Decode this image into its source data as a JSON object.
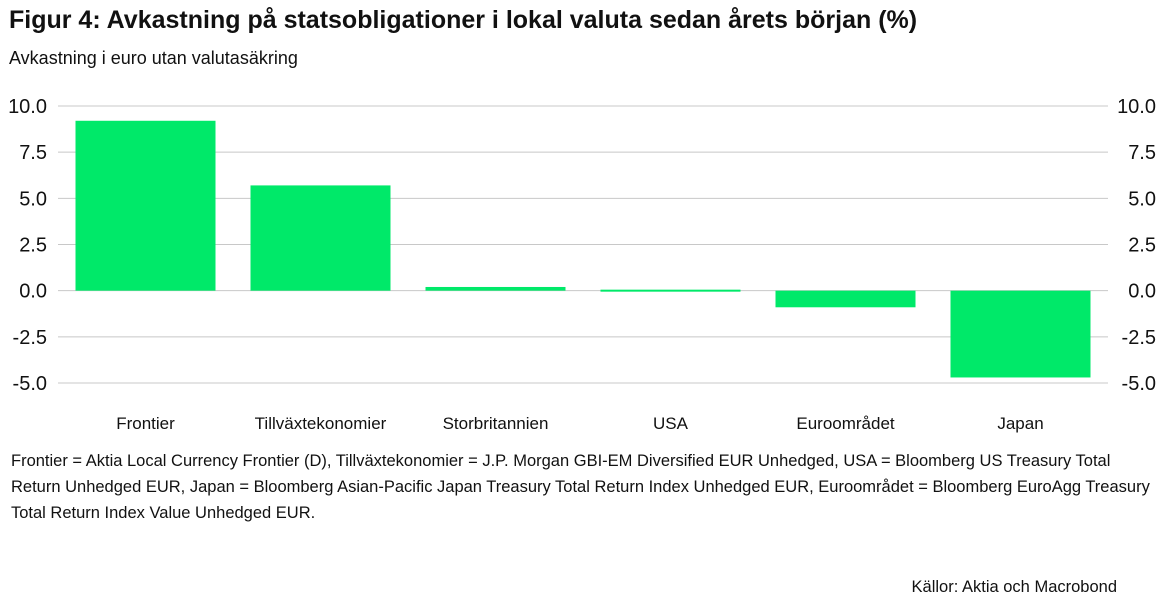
{
  "header": {
    "title": "Figur 4: Avkastning på statsobligationer i lokal valuta sedan årets början (%)",
    "subtitle": "Avkastning i euro utan valutasäkring"
  },
  "footer": {
    "note": "Frontier = Aktia Local Currency Frontier (D), Tillväxtekonomier = J.P. Morgan GBI-EM Diversified EUR Unhedged, USA = Bloomberg US Treasury Total Return Unhedged EUR, Japan = Bloomberg Asian-Pacific Japan Treasury Total Return Index Unhedged EUR, Euroområdet = Bloomberg EuroAgg Treasury Total Return Index Value Unhedged EUR.",
    "source": "Källor: Aktia och Macrobond"
  },
  "chart_data": {
    "type": "bar",
    "title": "Figur 4: Avkastning på statsobligationer i lokal valuta sedan årets början (%)",
    "subtitle": "Avkastning i euro utan valutasäkring",
    "categories": [
      "Frontier",
      "Tillväxtekonomier",
      "Storbritannien",
      "USA",
      "Euroområdet",
      "Japan"
    ],
    "values": [
      9.2,
      5.7,
      0.2,
      0.05,
      -0.9,
      -4.7
    ],
    "ylim": [
      -5.0,
      10.0
    ],
    "yticks": [
      "10.0",
      "7.5",
      "5.0",
      "2.5",
      "0.0",
      "-2.5",
      "-5.0"
    ],
    "ytick_values": [
      10.0,
      7.5,
      5.0,
      2.5,
      0.0,
      -2.5,
      -5.0
    ],
    "grid": true,
    "axes": "left and right",
    "color": "#00e969",
    "gridline_color": "#c8c8c8"
  }
}
